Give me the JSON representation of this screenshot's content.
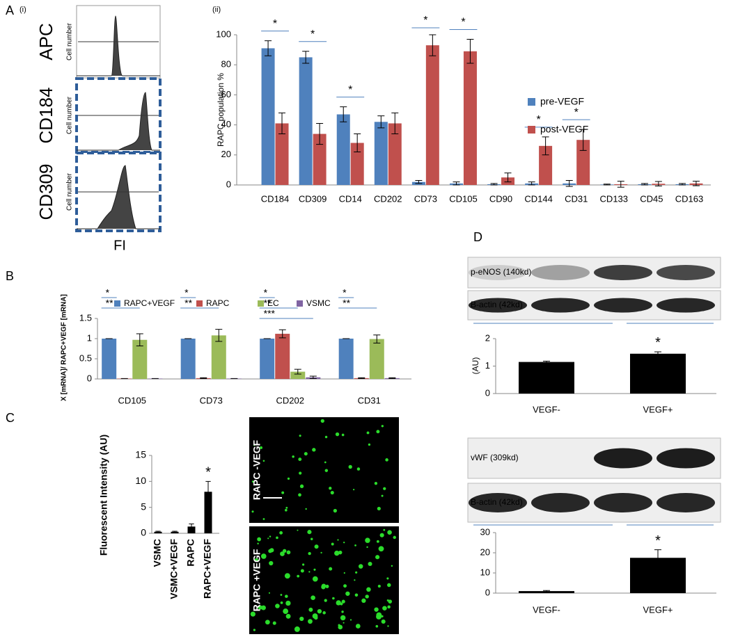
{
  "chart_data": [
    {
      "type": "bar",
      "label": "(ii)",
      "y_label": "RAPC population %",
      "legend": "right",
      "categories": [
        "CD184",
        "CD309",
        "CD14",
        "CD202",
        "CD73",
        "CD105",
        "CD90",
        "CD144",
        "CD31",
        "CD133",
        "CD45",
        "CD163"
      ],
      "series": [
        {
          "name": "pre-VEGF",
          "color": "#4f81bd",
          "values": [
            91,
            85,
            47,
            42,
            2,
            1,
            0.5,
            1,
            1,
            0.3,
            0.5,
            0.5
          ],
          "errors": [
            5,
            4,
            5,
            4,
            1,
            1,
            0.5,
            1,
            2,
            0.3,
            0.5,
            0.5
          ]
        },
        {
          "name": "post-VEGF",
          "color": "#c0504d",
          "values": [
            41,
            34,
            28,
            41,
            93,
            89,
            5,
            26,
            30,
            0.5,
            0.8,
            1
          ],
          "errors": [
            7,
            7,
            6,
            7,
            7,
            8,
            3,
            6,
            7,
            2,
            1.5,
            1.5
          ]
        }
      ],
      "annotations": [
        "*",
        "*",
        "*",
        null,
        "*",
        "*",
        null,
        "*",
        "*",
        null,
        null,
        null
      ],
      "ylim": [
        0,
        100
      ],
      "yticks": [
        0,
        20,
        40,
        60,
        80,
        100
      ]
    },
    {
      "type": "bar",
      "label": "B",
      "y_label": "X [mRNA]/ RAPC+VEGF [mRNA]",
      "legend": "top",
      "categories": [
        "CD105",
        "CD73",
        "CD202",
        "CD31"
      ],
      "series": [
        {
          "name": "RAPC+VEGF",
          "color": "#4f81bd",
          "values": [
            1,
            1,
            1,
            1
          ],
          "errors": [
            0,
            0,
            0,
            0
          ]
        },
        {
          "name": "RAPC",
          "color": "#c0504d",
          "values": [
            0.01,
            0.02,
            1.12,
            0.02
          ],
          "errors": [
            0,
            0.01,
            0.1,
            0.01
          ]
        },
        {
          "name": "EC",
          "color": "#9bbb59",
          "values": [
            0.97,
            1.08,
            0.18,
            0.99
          ],
          "errors": [
            0.15,
            0.15,
            0.06,
            0.1
          ]
        },
        {
          "name": "VSMC",
          "color": "#8064a2",
          "values": [
            0.01,
            0.01,
            0.04,
            0.02
          ],
          "errors": [
            0,
            0,
            0.03,
            0.01
          ]
        }
      ],
      "annotations": [
        [
          "*",
          "**"
        ],
        [
          "*",
          "**"
        ],
        [
          "*",
          "**",
          "***"
        ],
        [
          "*",
          "**"
        ]
      ],
      "ylim": [
        0,
        1.5
      ],
      "yticks": [
        0,
        0.5,
        1,
        1.5
      ]
    },
    {
      "type": "bar",
      "label": "C",
      "y_label": "Fluorescent Intensity (AU)",
      "categories": [
        "VSMC",
        "VSMC+VEGF",
        "RAPC",
        "RAPC+VEGF"
      ],
      "values": [
        0.3,
        0.3,
        1.3,
        8
      ],
      "errors": [
        0.1,
        0.1,
        0.5,
        2
      ],
      "color": "#000000",
      "annotations": [
        null,
        null,
        null,
        "*"
      ],
      "ylim": [
        0,
        15
      ],
      "yticks": [
        0,
        5,
        10,
        15
      ]
    },
    {
      "type": "bar",
      "label": "D",
      "y_label": "(AU)",
      "categories": [
        "VEGF-",
        "VEGF+"
      ],
      "values": [
        1.15,
        1.45
      ],
      "errors": [
        0.03,
        0.07
      ],
      "color": "#000000",
      "annotations": [
        null,
        "*"
      ],
      "ylim": [
        0,
        2
      ],
      "yticks": [
        0,
        1,
        2
      ]
    },
    {
      "type": "bar",
      "categories": [
        "VEGF-",
        "VEGF+"
      ],
      "values": [
        1,
        17.5
      ],
      "errors": [
        0.3,
        4
      ],
      "color": "#000000",
      "annotations": [
        null,
        "*"
      ],
      "ylim": [
        0,
        30
      ],
      "yticks": [
        0,
        10,
        20,
        30
      ]
    }
  ],
  "panel_a_i": {
    "panel": "A",
    "label": "(i)",
    "markers": [
      "APC",
      "CD184",
      "CD309"
    ],
    "y_label": "Cell number",
    "x_label": "FI"
  },
  "panel_c_images": [
    "RAPC -VEGF",
    "RAPC +VEGF"
  ],
  "panel_d_blots": [
    [
      "p-eNOS (140kd)",
      "B-actin (42kd)"
    ],
    [
      "vWF (309kd)",
      "B-actin (42kd)"
    ]
  ]
}
